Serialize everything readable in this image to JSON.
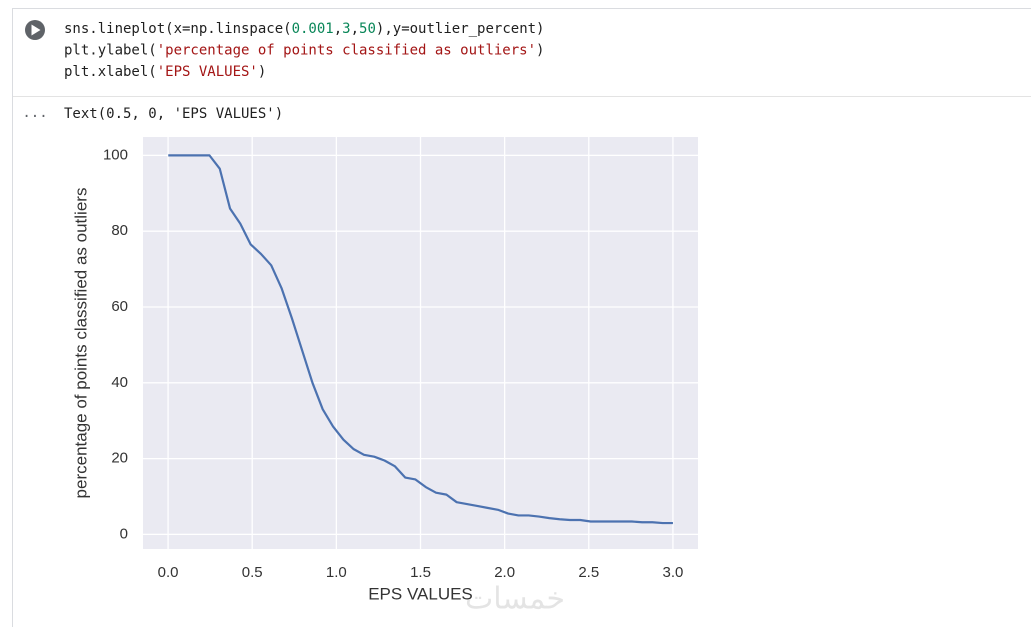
{
  "code": {
    "lines": [
      [
        {
          "text": "sns.lineplot(x=np.linspace(",
          "color": "#1f1f1f"
        },
        {
          "text": "0.001",
          "color": "#098658"
        },
        {
          "text": ",",
          "color": "#1f1f1f"
        },
        {
          "text": "3",
          "color": "#098658"
        },
        {
          "text": ",",
          "color": "#1f1f1f"
        },
        {
          "text": "50",
          "color": "#098658"
        },
        {
          "text": "),y=outlier_percent)",
          "color": "#1f1f1f"
        }
      ],
      [
        {
          "text": "plt.ylabel(",
          "color": "#1f1f1f"
        },
        {
          "text": "'percentage of points classified as outliers'",
          "color": "#a31515"
        },
        {
          "text": ")",
          "color": "#1f1f1f"
        }
      ],
      [
        {
          "text": "plt.xlabel(",
          "color": "#1f1f1f"
        },
        {
          "text": "'EPS VALUES'",
          "color": "#a31515"
        },
        {
          "text": ")",
          "color": "#1f1f1f"
        }
      ]
    ]
  },
  "output": {
    "ellipsis": "...",
    "text": "Text(0.5, 0, 'EPS VALUES')",
    "watermark": "خمسات"
  },
  "chart_data": {
    "type": "line",
    "xlabel": "EPS VALUES",
    "ylabel": "percentage of points classified as outliers",
    "x": [
      0.001,
      0.062,
      0.123,
      0.185,
      0.246,
      0.307,
      0.368,
      0.429,
      0.491,
      0.552,
      0.613,
      0.674,
      0.736,
      0.797,
      0.858,
      0.919,
      0.98,
      1.042,
      1.103,
      1.164,
      1.225,
      1.286,
      1.347,
      1.409,
      1.47,
      1.531,
      1.592,
      1.654,
      1.715,
      1.776,
      1.837,
      1.898,
      1.96,
      2.021,
      2.082,
      2.143,
      2.204,
      2.266,
      2.327,
      2.388,
      2.449,
      2.511,
      2.572,
      2.633,
      2.694,
      2.756,
      2.817,
      2.878,
      2.939,
      3.0
    ],
    "values": [
      100,
      100,
      100,
      100,
      100,
      96.5,
      86,
      82,
      76.5,
      74,
      71,
      65,
      57,
      48.5,
      40,
      33,
      28.5,
      25,
      22.5,
      21,
      20.5,
      19.5,
      18,
      15,
      14.5,
      12.5,
      11,
      10.5,
      8.5,
      8,
      7.5,
      7,
      6.5,
      5.5,
      5,
      5,
      4.7,
      4.3,
      4,
      3.8,
      3.8,
      3.4,
      3.4,
      3.4,
      3.4,
      3.4,
      3.2,
      3.2,
      3,
      3
    ],
    "color": "#4c72b0",
    "xlim": [
      -0.149,
      3.149
    ],
    "ylim": [
      -3.85,
      104.85
    ],
    "xticks": [
      {
        "value": 0,
        "label": "0.0"
      },
      {
        "value": 0.5,
        "label": "0.5"
      },
      {
        "value": 1,
        "label": "1.0"
      },
      {
        "value": 1.5,
        "label": "1.5"
      },
      {
        "value": 2,
        "label": "2.0"
      },
      {
        "value": 2.5,
        "label": "2.5"
      },
      {
        "value": 3,
        "label": "3.0"
      }
    ],
    "yticks": [
      0,
      20,
      40,
      60,
      80,
      100
    ],
    "grid": true,
    "background": "#eaeaf2"
  }
}
